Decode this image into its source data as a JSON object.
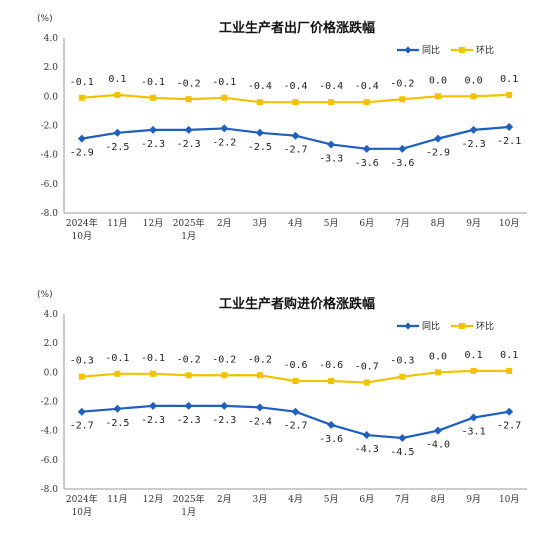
{
  "chart_data": [
    {
      "type": "line",
      "title": "工业生产者出厂价格涨跌幅",
      "unit": "(%)",
      "ylim": [
        -8.0,
        4.0
      ],
      "yticks": [
        "4.0",
        "2.0",
        "0.0",
        "-2.0",
        "-4.0",
        "-6.0",
        "-8.0"
      ],
      "categories": [
        [
          "2024年",
          "10月"
        ],
        [
          "11月"
        ],
        [
          "12月"
        ],
        [
          "2025年",
          "1月"
        ],
        [
          "2月"
        ],
        [
          "3月"
        ],
        [
          "4月"
        ],
        [
          "5月"
        ],
        [
          "6月"
        ],
        [
          "7月"
        ],
        [
          "8月"
        ],
        [
          "9月"
        ],
        [
          "10月"
        ]
      ],
      "legend_position": "top-right",
      "series": [
        {
          "name": "同比",
          "color": "#1f5fbf",
          "marker": "diamond",
          "label_position": "below",
          "values": [
            -2.9,
            -2.5,
            -2.3,
            -2.3,
            -2.2,
            -2.5,
            -2.7,
            -3.3,
            -3.6,
            -3.6,
            -2.9,
            -2.3,
            -2.1
          ],
          "labels": [
            "-2.9",
            "-2.5",
            "-2.3",
            "-2.3",
            "-2.2",
            "-2.5",
            "-2.7",
            "-3.3",
            "-3.6",
            "-3.6",
            "-2.9",
            "-2.3",
            "-2.1"
          ]
        },
        {
          "name": "环比",
          "color": "#f2c200",
          "marker": "square",
          "label_position": "above",
          "values": [
            -0.1,
            0.1,
            -0.1,
            -0.2,
            -0.1,
            -0.4,
            -0.4,
            -0.4,
            -0.4,
            -0.2,
            0.0,
            0.0,
            0.1
          ],
          "labels": [
            "-0.1",
            "0.1",
            "-0.1",
            "-0.2",
            "-0.1",
            "-0.4",
            "-0.4",
            "-0.4",
            "-0.4",
            "-0.2",
            "0.0",
            "0.0",
            "0.1"
          ]
        }
      ]
    },
    {
      "type": "line",
      "title": "工业生产者购进价格涨跌幅",
      "unit": "(%)",
      "ylim": [
        -8.0,
        4.0
      ],
      "yticks": [
        "4.0",
        "2.0",
        "0.0",
        "-2.0",
        "-4.0",
        "-6.0",
        "-8.0"
      ],
      "categories": [
        [
          "2024年",
          "10月"
        ],
        [
          "11月"
        ],
        [
          "12月"
        ],
        [
          "2025年",
          "1月"
        ],
        [
          "2月"
        ],
        [
          "3月"
        ],
        [
          "4月"
        ],
        [
          "5月"
        ],
        [
          "6月"
        ],
        [
          "7月"
        ],
        [
          "8月"
        ],
        [
          "9月"
        ],
        [
          "10月"
        ]
      ],
      "legend_position": "top-right",
      "series": [
        {
          "name": "同比",
          "color": "#1f5fbf",
          "marker": "diamond",
          "label_position": "below",
          "values": [
            -2.7,
            -2.5,
            -2.3,
            -2.3,
            -2.3,
            -2.4,
            -2.7,
            -3.6,
            -4.3,
            -4.5,
            -4.0,
            -3.1,
            -2.7
          ],
          "labels": [
            "-2.7",
            "-2.5",
            "-2.3",
            "-2.3",
            "-2.3",
            "-2.4",
            "-2.7",
            "-3.6",
            "-4.3",
            "-4.5",
            "-4.0",
            "-3.1",
            "-2.7"
          ]
        },
        {
          "name": "环比",
          "color": "#f2c200",
          "marker": "square",
          "label_position": "above",
          "values": [
            -0.3,
            -0.1,
            -0.1,
            -0.2,
            -0.2,
            -0.2,
            -0.6,
            -0.6,
            -0.7,
            -0.3,
            0.0,
            0.1,
            0.1
          ],
          "labels": [
            "-0.3",
            "-0.1",
            "-0.1",
            "-0.2",
            "-0.2",
            "-0.2",
            "-0.6",
            "-0.6",
            "-0.7",
            "-0.3",
            "0.0",
            "0.1",
            "0.1"
          ]
        }
      ]
    }
  ]
}
